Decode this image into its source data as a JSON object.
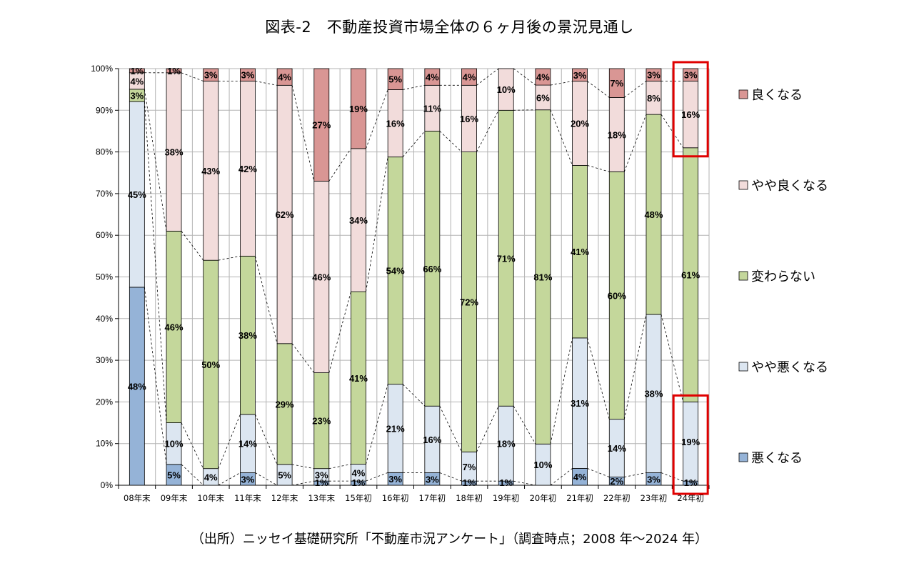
{
  "title": "図表-2　不動産投資市場全体の６ヶ月後の景況見通し",
  "source": "（出所）ニッセイ基礎研究所「不動産市況アンケート」（調査時点；2008 年～2024 年）",
  "chart_data": {
    "type": "bar",
    "stacked": true,
    "ylim": [
      0,
      100
    ],
    "yticks": [
      "0%",
      "10%",
      "20%",
      "30%",
      "40%",
      "50%",
      "60%",
      "70%",
      "80%",
      "90%",
      "100%"
    ],
    "grid": true,
    "legend_position": "right",
    "categories": [
      "08年末",
      "09年末",
      "10年末",
      "11年末",
      "12年末",
      "13年末",
      "15年初",
      "16年初",
      "17年初",
      "18年初",
      "19年初",
      "20年初",
      "21年初",
      "22年初",
      "23年初",
      "24年初"
    ],
    "series": [
      {
        "name": "悪くなる",
        "color": "#95b3d7",
        "values": [
          48,
          5,
          0,
          3,
          0,
          1,
          1,
          3,
          3,
          1,
          1,
          0,
          4,
          2,
          3,
          1
        ],
        "labels": [
          "48%",
          "5%",
          "",
          "3%",
          "",
          "1%",
          "1%",
          "3%",
          "3%",
          "1%",
          "1%",
          "",
          "4%",
          "2%",
          "3%",
          "1%"
        ]
      },
      {
        "name": "やや悪くなる",
        "color": "#dce6f1",
        "values": [
          45,
          10,
          4,
          14,
          5,
          3,
          4,
          21,
          16,
          7,
          18,
          10,
          31,
          14,
          38,
          19
        ],
        "labels": [
          "45%",
          "10%",
          "4%",
          "14%",
          "5%",
          "3%",
          "4%",
          "21%",
          "16%",
          "7%",
          "18%",
          "10%",
          "31%",
          "14%",
          "38%",
          "19%"
        ]
      },
      {
        "name": "変わらない",
        "color": "#c4d79b",
        "values": [
          3,
          46,
          50,
          38,
          29,
          23,
          41,
          54,
          66,
          72,
          71,
          81,
          41,
          60,
          48,
          61
        ],
        "labels": [
          "3%",
          "46%",
          "50%",
          "38%",
          "29%",
          "23%",
          "41%",
          "54%",
          "66%",
          "72%",
          "71%",
          "81%",
          "41%",
          "60%",
          "48%",
          "61%"
        ]
      },
      {
        "name": "やや良くなる",
        "color": "#f2dcdb",
        "values": [
          4,
          38,
          43,
          42,
          62,
          46,
          34,
          16,
          11,
          16,
          10,
          6,
          20,
          18,
          8,
          16
        ],
        "labels": [
          "4%",
          "38%",
          "43%",
          "42%",
          "62%",
          "46%",
          "34%",
          "16%",
          "11%",
          "16%",
          "10%",
          "6%",
          "20%",
          "18%",
          "8%",
          "16%"
        ]
      },
      {
        "name": "良くなる",
        "color": "#d99694",
        "values": [
          1,
          1,
          3,
          3,
          4,
          27,
          19,
          5,
          4,
          4,
          0,
          4,
          3,
          7,
          3,
          3
        ],
        "labels": [
          "1%",
          "1%",
          "3%",
          "3%",
          "4%",
          "27%",
          "19%",
          "5%",
          "4%",
          "4%",
          "",
          "4%",
          "3%",
          "7%",
          "3%",
          "3%"
        ]
      }
    ],
    "highlight_color": "#e00000",
    "highlights": [
      {
        "category": "24年初",
        "from": 81,
        "to": 100
      },
      {
        "category": "24年初",
        "from": 0,
        "to": 20
      }
    ]
  }
}
